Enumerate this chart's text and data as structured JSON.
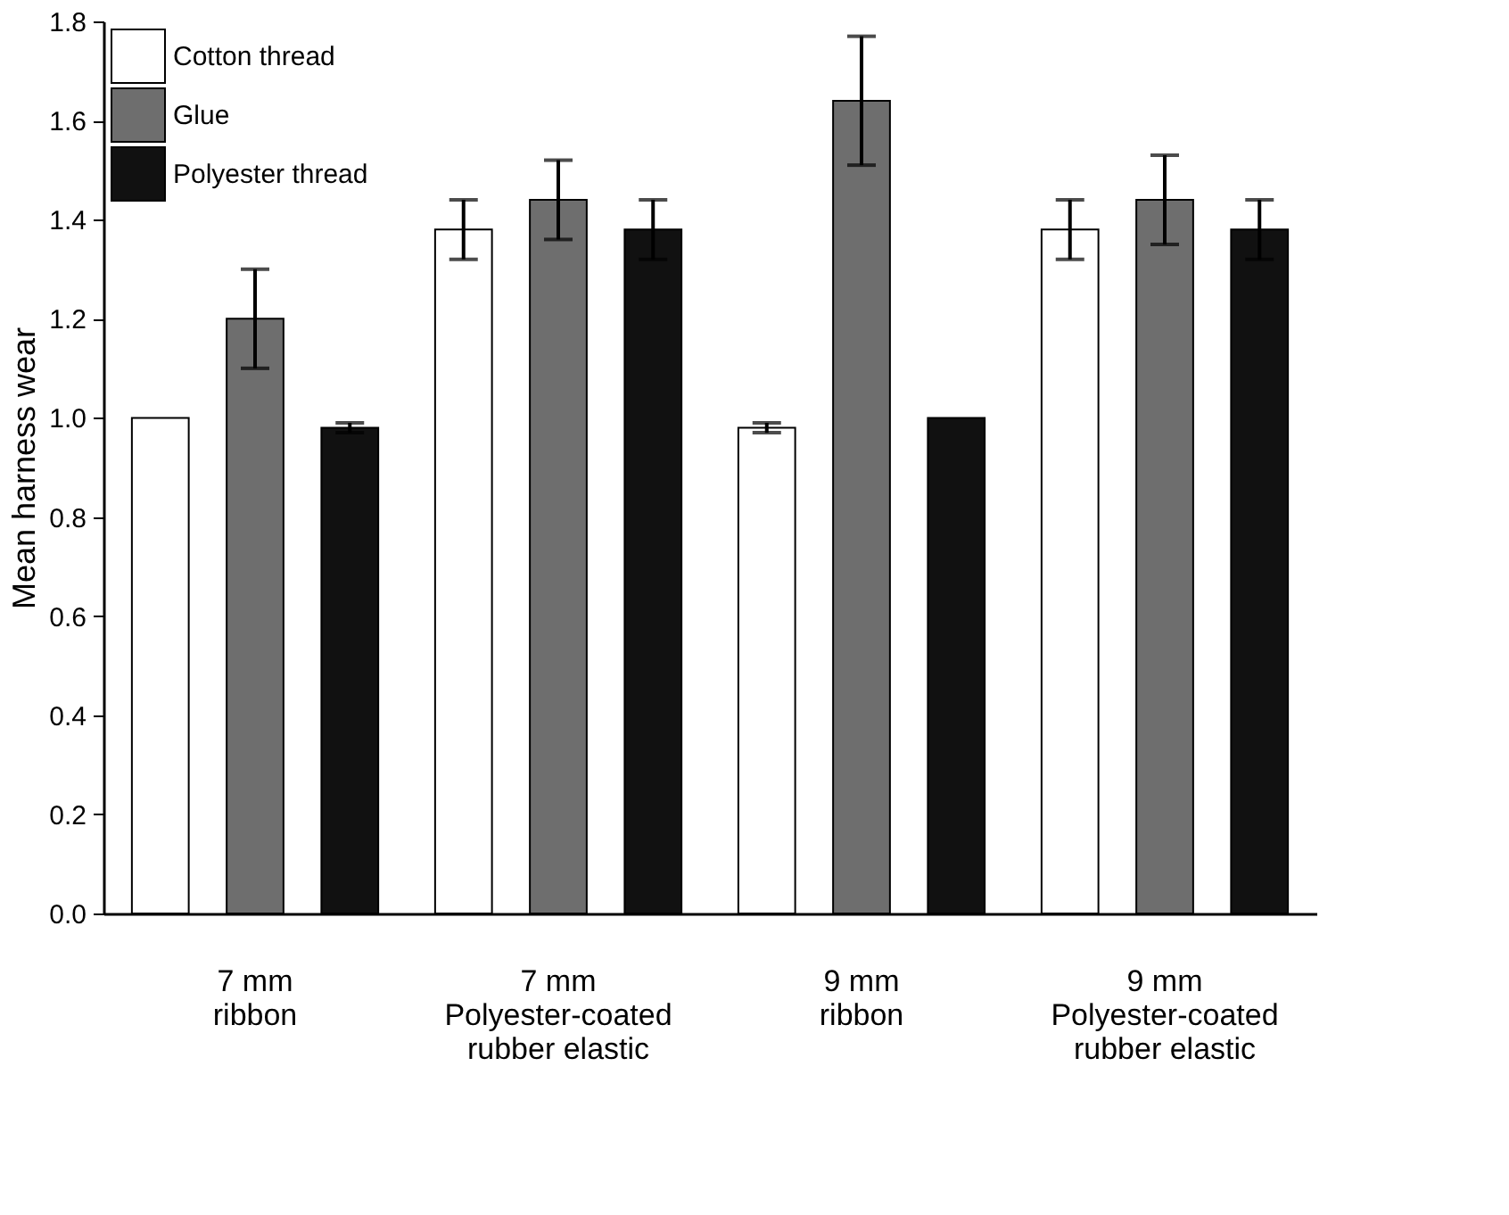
{
  "chart_data": {
    "type": "bar",
    "ylabel": "Mean harness wear",
    "categories": [
      "7 mm\nribbon",
      "7 mm\nPolyester-coated\nrubber elastic",
      "9 mm\nribbon",
      "9 mm\nPolyester-coated\nrubber elastic"
    ],
    "series": [
      {
        "name": "Cotton thread",
        "color": "#ffffff",
        "values": [
          1.0,
          1.38,
          0.98,
          1.38
        ],
        "errors": [
          null,
          0.06,
          0.01,
          0.06
        ]
      },
      {
        "name": "Glue",
        "color": "#6e6e6e",
        "values": [
          1.2,
          1.44,
          1.64,
          1.44
        ],
        "errors": [
          0.1,
          0.08,
          0.13,
          0.09
        ]
      },
      {
        "name": "Polyester thread",
        "color": "#111111",
        "values": [
          0.98,
          1.38,
          1.0,
          1.38
        ],
        "errors": [
          0.01,
          0.06,
          null,
          0.06
        ]
      }
    ],
    "ylim": [
      0,
      1.8
    ],
    "yticks": [
      {
        "value": 0,
        "label": "0.0"
      },
      {
        "value": 0.2,
        "label": "0.2"
      },
      {
        "value": 0.4,
        "label": "0.4"
      },
      {
        "value": 0.6,
        "label": "0.6"
      },
      {
        "value": 0.8,
        "label": "0.8"
      },
      {
        "value": 1.0,
        "label": "1.0"
      },
      {
        "value": 1.2,
        "label": "1.2"
      },
      {
        "value": 1.4,
        "label": "1.4"
      },
      {
        "value": 1.6,
        "label": "1.6"
      },
      {
        "value": 1.8,
        "label": "1.8"
      }
    ],
    "legend": "top left",
    "grid": false
  }
}
